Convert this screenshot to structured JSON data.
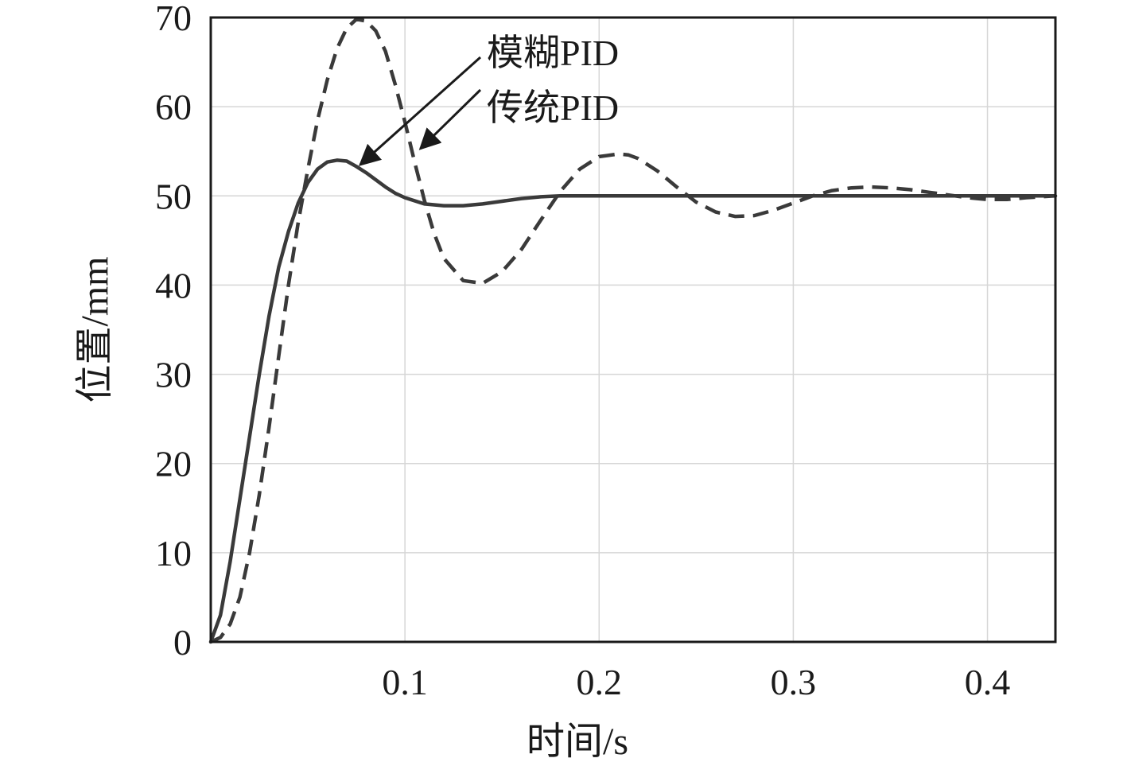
{
  "chart_data": {
    "type": "line",
    "title": "",
    "xlabel": "时间/s",
    "ylabel": "位置/mm",
    "xlim": [
      0,
      0.435
    ],
    "ylim": [
      0,
      70
    ],
    "x_ticks": [
      0.1,
      0.2,
      0.3,
      0.4
    ],
    "x_tick_labels": [
      "0.1",
      "0.2",
      "0.3",
      "0.4"
    ],
    "y_ticks": [
      0,
      10,
      20,
      30,
      40,
      50,
      60,
      70
    ],
    "y_tick_labels": [
      "0",
      "10",
      "20",
      "30",
      "40",
      "50",
      "60",
      "70"
    ],
    "grid": true,
    "series": [
      {
        "name": "模糊PID",
        "style": "solid",
        "color": "#3a3a3a",
        "x": [
          0,
          0.005,
          0.01,
          0.015,
          0.02,
          0.025,
          0.03,
          0.035,
          0.04,
          0.045,
          0.05,
          0.055,
          0.06,
          0.065,
          0.07,
          0.075,
          0.08,
          0.085,
          0.09,
          0.095,
          0.1,
          0.11,
          0.12,
          0.13,
          0.14,
          0.15,
          0.16,
          0.17,
          0.18,
          0.19,
          0.2,
          0.22,
          0.25,
          0.3,
          0.35,
          0.4,
          0.435
        ],
        "y": [
          0,
          3,
          9,
          16,
          23,
          30,
          36.5,
          42,
          46,
          49.2,
          51.5,
          53,
          53.8,
          54,
          53.9,
          53.3,
          52.6,
          51.8,
          51,
          50.3,
          49.8,
          49.1,
          48.9,
          48.9,
          49.1,
          49.4,
          49.7,
          49.9,
          50,
          50,
          50,
          50,
          50,
          50,
          50,
          50,
          50
        ]
      },
      {
        "name": "传统PID",
        "style": "dashed",
        "color": "#3a3a3a",
        "x": [
          0,
          0.005,
          0.01,
          0.015,
          0.02,
          0.025,
          0.03,
          0.035,
          0.04,
          0.045,
          0.05,
          0.055,
          0.06,
          0.065,
          0.07,
          0.075,
          0.08,
          0.085,
          0.09,
          0.095,
          0.1,
          0.105,
          0.11,
          0.115,
          0.12,
          0.13,
          0.14,
          0.15,
          0.16,
          0.17,
          0.18,
          0.19,
          0.2,
          0.21,
          0.215,
          0.22,
          0.23,
          0.24,
          0.25,
          0.26,
          0.27,
          0.28,
          0.29,
          0.3,
          0.31,
          0.32,
          0.33,
          0.34,
          0.35,
          0.36,
          0.37,
          0.38,
          0.39,
          0.4,
          0.41,
          0.42,
          0.435
        ],
        "y": [
          0,
          0.5,
          2,
          5,
          10,
          16.5,
          24,
          32,
          40,
          47,
          53,
          58.5,
          63,
          66.5,
          68.8,
          69.8,
          69.6,
          68.5,
          66.2,
          62.5,
          58.3,
          53.8,
          49.5,
          45.8,
          43,
          40.5,
          40.2,
          41.5,
          44,
          47.3,
          50.5,
          53,
          54.4,
          54.7,
          54.6,
          54.2,
          52.8,
          51,
          49.3,
          48.2,
          47.7,
          47.8,
          48.4,
          49.2,
          50,
          50.6,
          50.9,
          51,
          50.9,
          50.7,
          50.4,
          50.1,
          49.8,
          49.6,
          49.6,
          49.8,
          50
        ]
      }
    ],
    "annotations": [
      {
        "text": "模糊PID",
        "points_to_x": 0.077,
        "points_to_y": 53.5
      },
      {
        "text": "传统PID",
        "points_to_x": 0.108,
        "points_to_y": 55.3
      }
    ]
  }
}
